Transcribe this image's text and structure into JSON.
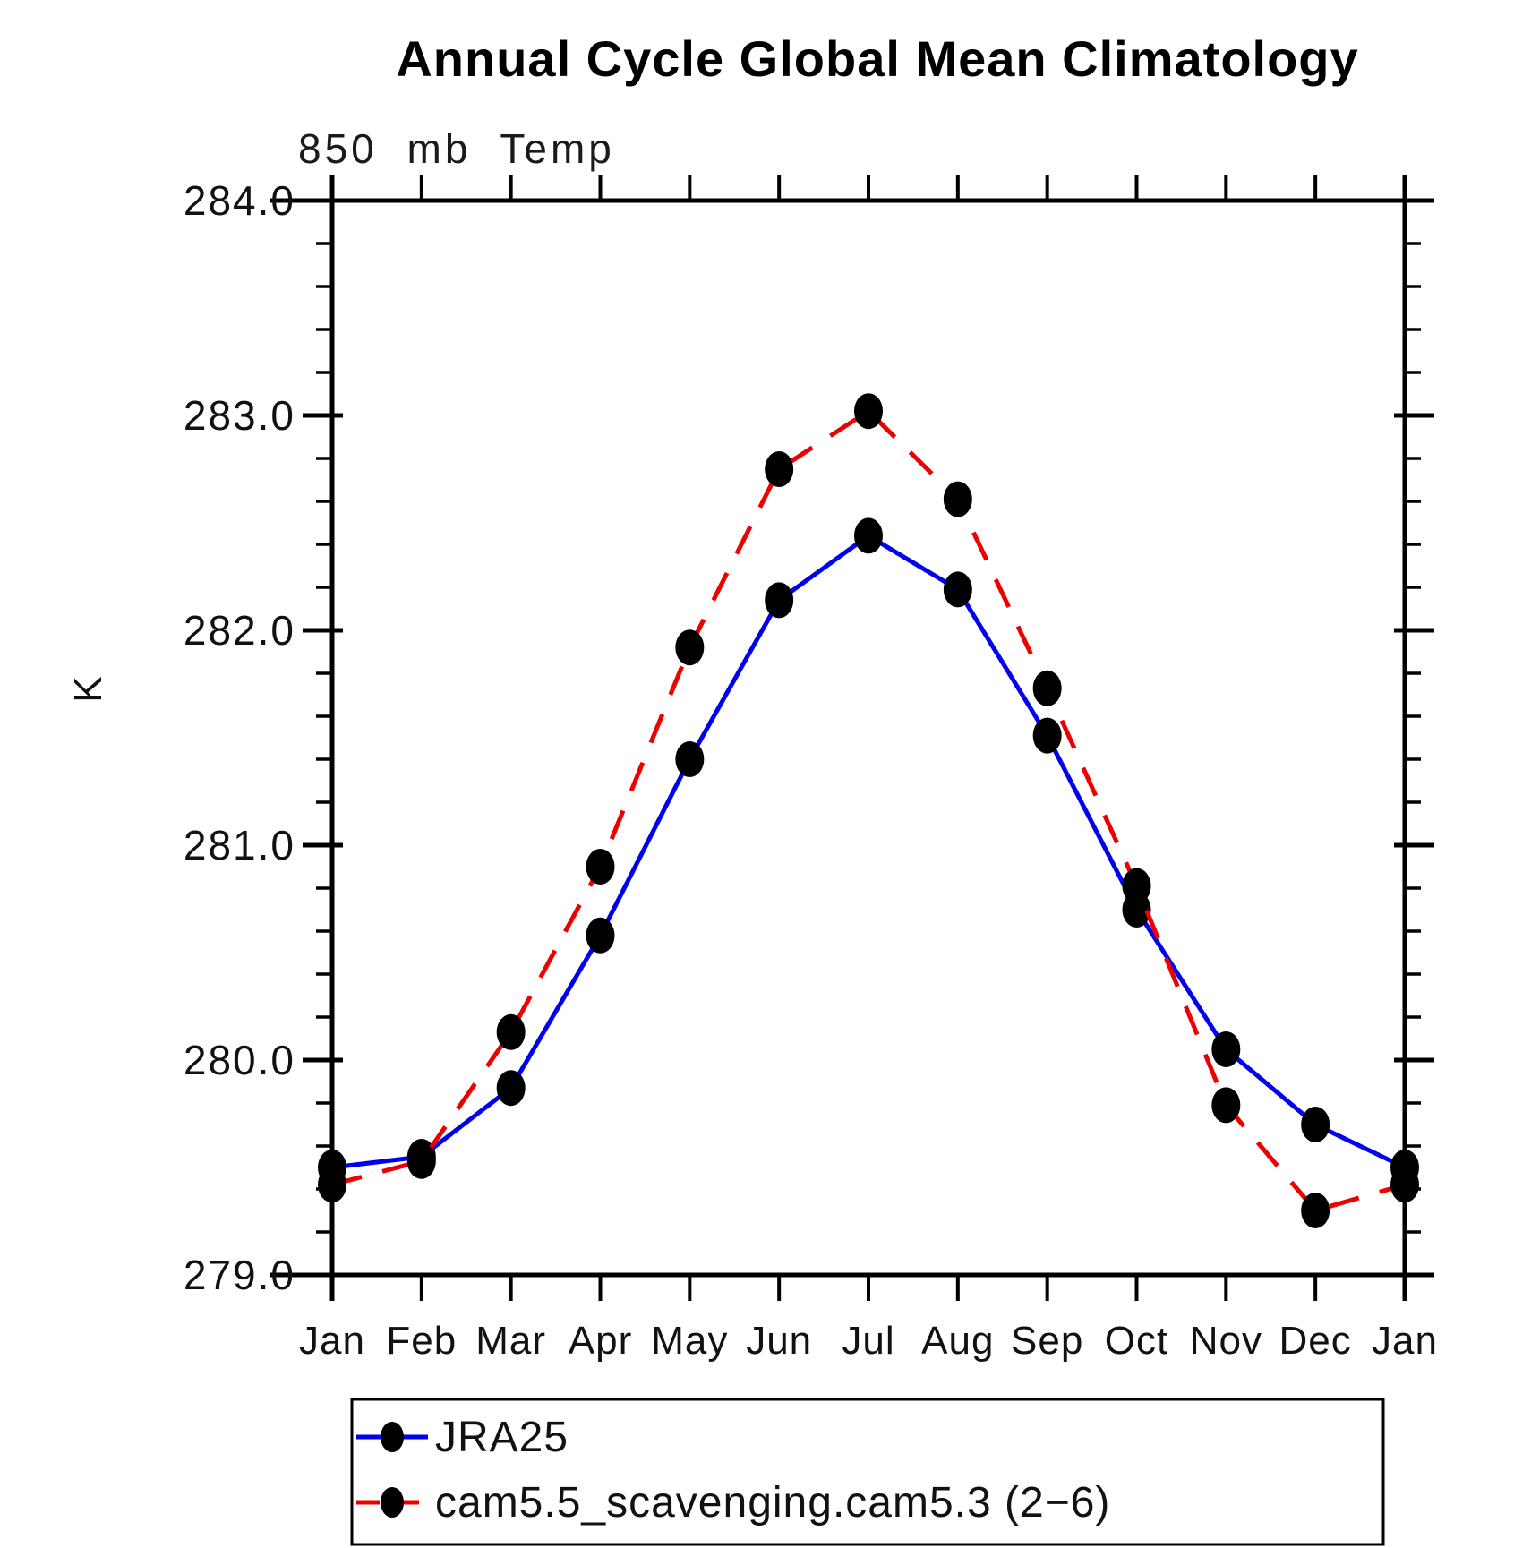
{
  "title": "Annual Cycle Global Mean Climatology",
  "chart_data": {
    "type": "line",
    "title": "Annual Cycle Global Mean Climatology",
    "subtitle": "850 mb Temp",
    "xlabel": "",
    "ylabel": "K",
    "categories": [
      "Jan",
      "Feb",
      "Mar",
      "Apr",
      "May",
      "Jun",
      "Jul",
      "Aug",
      "Sep",
      "Oct",
      "Nov",
      "Dec",
      "Jan"
    ],
    "ylim": [
      279.0,
      284.0
    ],
    "ytick_step": 1.0,
    "yminor_step": 0.2,
    "ytick_labels": [
      "279.0",
      "280.0",
      "281.0",
      "282.0",
      "283.0",
      "284.0"
    ],
    "grid": false,
    "legend_position": "bottom-left-box",
    "marker": {
      "shape": "filled-circle",
      "color": "#000000"
    },
    "series": [
      {
        "name": "JRA25",
        "color": "#0000ee",
        "line_style": "solid",
        "values": [
          279.5,
          279.55,
          279.87,
          280.58,
          281.4,
          282.14,
          282.44,
          282.19,
          281.51,
          280.7,
          280.05,
          279.7,
          279.5
        ]
      },
      {
        "name": "cam5.5_scavenging.cam5.3 (2−6)",
        "color": "#ee0000",
        "line_style": "dashed",
        "values": [
          279.42,
          279.53,
          280.13,
          280.9,
          281.92,
          282.75,
          283.02,
          282.61,
          281.73,
          280.81,
          279.79,
          279.3,
          279.42
        ]
      }
    ]
  }
}
